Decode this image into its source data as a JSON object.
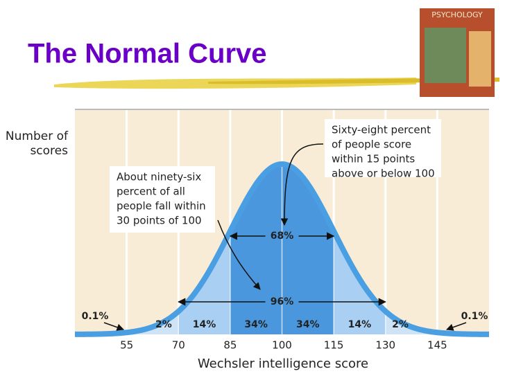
{
  "title": "The Normal Curve",
  "cover": {
    "title": "PSYCHOLOGY"
  },
  "chart_data": {
    "type": "normal",
    "y_label": [
      "Number of",
      "scores"
    ],
    "x_label": "Wechsler intelligence score",
    "xlim": [
      40,
      160
    ],
    "xticks": [
      55,
      70,
      85,
      100,
      115,
      130,
      145
    ],
    "values": [
      0.1,
      2,
      14,
      34,
      34,
      14,
      2,
      0.1
    ],
    "value_labels": [
      "0.1%",
      "2%",
      "14%",
      "34%",
      "34%",
      "14%",
      "2%",
      "0.1%"
    ],
    "colors": [
      "#f3ead8",
      "#cfe3f7",
      "#a9d0f3",
      "#4b97de",
      "#4b97de",
      "#a9d0f3",
      "#cfe3f7",
      "#f3ead8"
    ],
    "curve_color": "#4a9fe2",
    "ranges": [
      {
        "label": "68%"
      },
      {
        "label": "96%"
      }
    ],
    "annotations": [
      {
        "lines": [
          "About ninety-six",
          "percent of all",
          "people fall within",
          "30 points of 100"
        ]
      },
      {
        "lines": [
          "Sixty-eight percent",
          "of people score",
          "within 15 points",
          "above or below 100"
        ]
      }
    ]
  }
}
